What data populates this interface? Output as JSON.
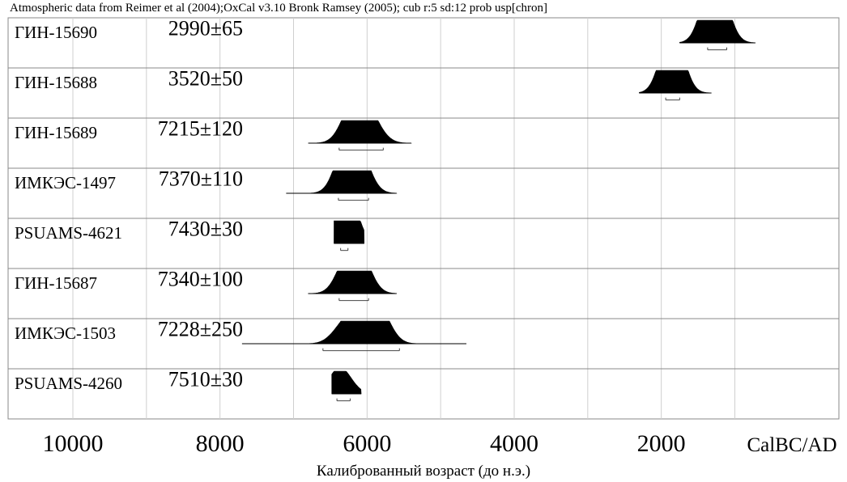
{
  "chart_data": {
    "type": "area",
    "title": "Atmospheric data from Reimer et al (2004);OxCal v3.10 Bronk Ramsey (2005); cub r:5 sd:12 prob usp[chron]",
    "xlabel": "Калиброванный возраст (до н.э.)",
    "x_unit_label": "CalBC/AD",
    "x_ticks": [
      "10000",
      "8000",
      "6000",
      "4000",
      "2000"
    ],
    "xlim": [
      11000,
      100
    ],
    "x_reversed": true,
    "grid": true,
    "samples": [
      {
        "label": "ГИН-15690",
        "date": "2990±65",
        "range": [
          1750,
          720
        ],
        "range68": [
          1370,
          1110
        ],
        "peaks": [
          [
            1360,
            0.85
          ],
          [
            1310,
            1.0
          ],
          [
            1255,
            0.95
          ],
          [
            1200,
            0.75
          ],
          [
            1150,
            0.35
          ]
        ]
      },
      {
        "label": "ГИН-15688",
        "date": "3520±50",
        "range": [
          2300,
          1320
        ],
        "range68": [
          1940,
          1750
        ],
        "peaks": [
          [
            1905,
            0.8
          ],
          [
            1875,
            1.0
          ],
          [
            1830,
            0.95
          ],
          [
            1785,
            0.6
          ]
        ]
      },
      {
        "label": "ГИН-15689",
        "date": "7215±120",
        "range": [
          6800,
          5400
        ],
        "range68": [
          6380,
          5780
        ],
        "peaks": [
          [
            6280,
            0.55
          ],
          [
            6170,
            0.95
          ],
          [
            6080,
            0.85
          ],
          [
            5980,
            0.7
          ],
          [
            5850,
            0.3
          ]
        ]
      },
      {
        "label": "ИМКЭС-1497",
        "date": "7370±110",
        "range": [
          7100,
          5600
        ],
        "range68": [
          6390,
          5980
        ],
        "peaks": [
          [
            6340,
            0.8
          ],
          [
            6270,
            1.0
          ],
          [
            6180,
            0.95
          ],
          [
            6110,
            0.8
          ],
          [
            6020,
            0.4
          ]
        ]
      },
      {
        "label": "PSUAMS-4621",
        "date": "7430±30",
        "range": [
          6450,
          6040
        ],
        "range68": [
          6360,
          6260
        ],
        "peaks": [
          [
            6330,
            0.95
          ],
          [
            6285,
            1.0
          ],
          [
            6250,
            0.85
          ]
        ]
      },
      {
        "label": "ГИН-15687",
        "date": "7340±100",
        "range": [
          6800,
          5600
        ],
        "range68": [
          6380,
          5980
        ],
        "peaks": [
          [
            6320,
            0.75
          ],
          [
            6200,
            1.0
          ],
          [
            6110,
            0.9
          ],
          [
            6020,
            0.5
          ]
        ]
      },
      {
        "label": "ИМКЭС-1503",
        "date": "7228±250",
        "range": [
          7700,
          4650
        ],
        "range68": [
          6600,
          5560
        ],
        "peaks": [
          [
            6400,
            0.35
          ],
          [
            6250,
            0.75
          ],
          [
            6080,
            0.95
          ],
          [
            5960,
            1.0
          ],
          [
            5850,
            0.8
          ],
          [
            5740,
            0.45
          ]
        ]
      },
      {
        "label": "PSUAMS-4260",
        "date": "7510±30",
        "range": [
          6480,
          6080
        ],
        "range68": [
          6410,
          6230
        ],
        "peaks": [
          [
            6390,
            1.0
          ],
          [
            6270,
            0.3
          ]
        ]
      }
    ]
  }
}
